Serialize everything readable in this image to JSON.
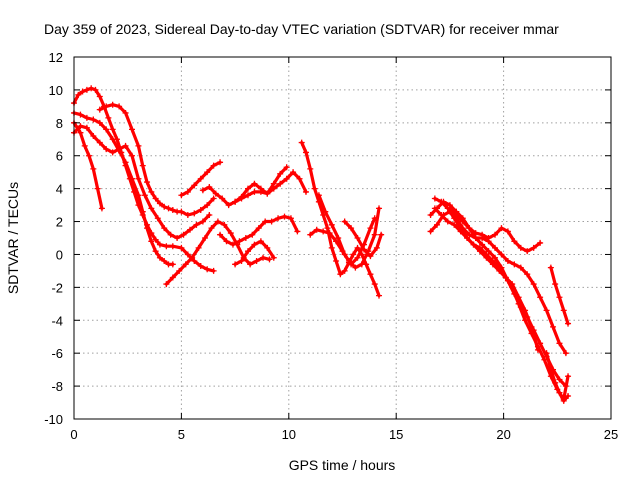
{
  "chart_data": {
    "type": "scatter",
    "title": "Day 359 of 2023, Sidereal Day-to-day VTEC variation (SDTVAR) for receiver mmar",
    "xlabel": "GPS time / hours",
    "ylabel": "SDTVAR / TECUs",
    "xlim": [
      0,
      25
    ],
    "ylim": [
      -10,
      12
    ],
    "xticks": [
      0,
      5,
      10,
      15,
      20,
      25
    ],
    "yticks": [
      -10,
      -8,
      -6,
      -4,
      -2,
      0,
      2,
      4,
      6,
      8,
      10,
      12
    ],
    "grid": true,
    "marker": "+",
    "color": "#ff0000",
    "series": [
      {
        "name": "s1",
        "x": [
          0.0,
          0.3,
          0.5,
          0.7,
          0.9,
          1.1,
          1.3
        ],
        "y": [
          8.0,
          7.4,
          6.6,
          6.0,
          5.2,
          4.0,
          2.8
        ]
      },
      {
        "name": "s2",
        "x": [
          0.0,
          0.2,
          0.4,
          0.6,
          0.8,
          1.0,
          1.2,
          1.4,
          1.6,
          1.8,
          2.0,
          2.2,
          2.4,
          2.6,
          2.8,
          3.0,
          3.2,
          3.4,
          3.6,
          3.8,
          4.0,
          4.3,
          4.6,
          5.0,
          5.3,
          5.6,
          5.9,
          6.2,
          6.5
        ],
        "y": [
          9.2,
          9.7,
          9.9,
          10.0,
          10.1,
          10.0,
          9.6,
          9.0,
          8.3,
          7.6,
          7.0,
          6.2,
          5.4,
          4.6,
          3.8,
          3.0,
          2.4,
          1.8,
          1.3,
          0.9,
          0.6,
          0.5,
          0.5,
          0.4,
          0.0,
          -0.4,
          -0.7,
          -0.9,
          -1.0
        ]
      },
      {
        "name": "s3",
        "x": [
          0.0,
          0.3,
          0.6,
          0.9,
          1.2,
          1.5,
          1.8,
          2.1,
          2.4,
          2.7,
          3.0,
          3.2,
          3.4,
          3.6,
          3.8,
          4.0,
          4.2,
          4.4,
          4.6
        ],
        "y": [
          8.6,
          8.5,
          8.3,
          8.2,
          8.0,
          7.6,
          7.0,
          6.3,
          5.6,
          4.6,
          3.6,
          2.6,
          1.6,
          0.8,
          0.2,
          -0.2,
          -0.4,
          -0.6,
          -0.6
        ]
      },
      {
        "name": "s4",
        "x": [
          0.0,
          0.3,
          0.6,
          0.9,
          1.2,
          1.5,
          1.8,
          2.1,
          2.4,
          2.7,
          3.0,
          3.3,
          3.6,
          3.9,
          4.2,
          4.5,
          4.8,
          5.1,
          5.4,
          5.7,
          6.0,
          6.3
        ],
        "y": [
          7.4,
          7.8,
          7.7,
          7.2,
          6.8,
          6.4,
          6.2,
          6.4,
          6.6,
          6.0,
          4.6,
          3.6,
          2.8,
          2.2,
          1.6,
          1.2,
          1.0,
          1.2,
          1.5,
          1.8,
          2.0,
          2.4
        ]
      },
      {
        "name": "s5",
        "x": [
          1.2,
          1.5,
          1.8,
          2.1,
          2.4,
          2.7,
          3.0,
          3.2,
          3.4,
          3.6,
          3.8,
          4.0,
          4.2,
          4.4,
          4.6,
          4.8,
          5.0,
          5.3,
          5.6,
          5.9,
          6.2,
          6.5
        ],
        "y": [
          8.8,
          9.0,
          9.1,
          9.0,
          8.6,
          7.6,
          6.6,
          5.4,
          4.4,
          3.8,
          3.4,
          3.1,
          2.9,
          2.8,
          2.7,
          2.6,
          2.6,
          2.4,
          2.5,
          2.7,
          3.0,
          3.4
        ]
      },
      {
        "name": "s6",
        "x": [
          4.3,
          4.6,
          4.9,
          5.2,
          5.5,
          5.8,
          6.1,
          6.4,
          6.7,
          7.0,
          7.3,
          7.6,
          7.9,
          8.2,
          8.5,
          8.8,
          9.1
        ],
        "y": [
          -1.8,
          -1.4,
          -1.0,
          -0.6,
          -0.2,
          0.4,
          1.0,
          1.6,
          2.0,
          1.8,
          1.3,
          0.6,
          -0.2,
          -0.6,
          -0.4,
          -0.2,
          -0.3
        ]
      },
      {
        "name": "s7",
        "x": [
          5.0,
          5.3,
          5.6,
          5.9,
          6.2,
          6.5,
          6.8
        ],
        "y": [
          3.6,
          3.8,
          4.2,
          4.6,
          5.0,
          5.4,
          5.6
        ]
      },
      {
        "name": "s8",
        "x": [
          6.0,
          6.3,
          6.6,
          6.9,
          7.2,
          7.5,
          7.8,
          8.1,
          8.4,
          8.7,
          9.0,
          9.3,
          9.6,
          9.9,
          10.2,
          10.5,
          10.8
        ],
        "y": [
          3.9,
          4.1,
          3.7,
          3.4,
          3.0,
          3.2,
          3.4,
          3.6,
          3.8,
          3.8,
          3.7,
          4.0,
          4.3,
          4.6,
          5.0,
          4.6,
          3.8
        ]
      },
      {
        "name": "s9",
        "x": [
          7.5,
          7.8,
          8.1,
          8.4,
          8.7,
          9.0,
          9.3,
          9.6,
          9.9
        ],
        "y": [
          3.2,
          3.5,
          4.0,
          4.3,
          4.0,
          3.7,
          4.3,
          4.9,
          5.3
        ]
      },
      {
        "name": "s10",
        "x": [
          6.8,
          7.1,
          7.4,
          7.7,
          8.0,
          8.3,
          8.6,
          8.9,
          9.2,
          9.5,
          9.8,
          10.1,
          10.4
        ],
        "y": [
          1.2,
          0.8,
          0.6,
          0.8,
          1.0,
          1.2,
          1.6,
          2.0,
          2.0,
          2.2,
          2.3,
          2.2,
          1.4
        ]
      },
      {
        "name": "s11",
        "x": [
          7.5,
          7.8,
          8.1,
          8.4,
          8.7,
          9.0,
          9.3
        ],
        "y": [
          -0.6,
          -0.4,
          0.2,
          0.6,
          0.8,
          0.4,
          -0.2
        ]
      },
      {
        "name": "s12",
        "x": [
          10.6,
          10.8,
          11.0,
          11.2,
          11.4,
          11.6,
          11.8,
          12.0,
          12.2,
          12.4,
          12.6,
          12.8,
          13.0,
          13.2,
          13.4,
          13.6,
          13.8,
          14.0,
          14.2
        ],
        "y": [
          6.8,
          6.2,
          5.2,
          4.0,
          3.2,
          2.4,
          1.6,
          0.4,
          -0.4,
          -1.2,
          -1.0,
          -0.5,
          0.0,
          0.4,
          0.0,
          -0.6,
          -1.2,
          -1.8,
          -2.5
        ]
      },
      {
        "name": "s13",
        "x": [
          11.0,
          11.3,
          11.6,
          11.9,
          12.2,
          12.5,
          12.8,
          13.1,
          13.4,
          13.7,
          14.0,
          14.2
        ],
        "y": [
          1.2,
          1.5,
          1.4,
          1.3,
          0.8,
          0.2,
          -0.4,
          -0.8,
          -0.6,
          0.2,
          1.2,
          2.8
        ]
      },
      {
        "name": "s14",
        "x": [
          11.4,
          11.7,
          12.0,
          12.3,
          12.6,
          12.9,
          13.2,
          13.5,
          13.8,
          14.0
        ],
        "y": [
          3.6,
          2.6,
          1.8,
          1.0,
          0.0,
          -0.6,
          -0.2,
          0.6,
          1.6,
          2.2
        ]
      },
      {
        "name": "s15",
        "x": [
          12.6,
          12.9,
          13.2,
          13.5,
          13.8,
          14.1,
          14.3
        ],
        "y": [
          2.0,
          1.6,
          1.0,
          0.3,
          -0.1,
          0.4,
          1.2
        ]
      },
      {
        "name": "s16",
        "x": [
          16.6,
          16.9,
          17.2,
          17.5,
          17.8,
          18.1,
          18.4,
          18.7,
          19.0,
          19.3,
          19.6,
          19.9,
          20.2,
          20.5,
          20.8,
          21.1,
          21.4,
          21.7,
          22.0,
          22.3,
          22.6,
          22.9
        ],
        "y": [
          2.4,
          2.8,
          3.2,
          3.0,
          2.6,
          2.2,
          1.6,
          1.0,
          0.6,
          0.2,
          -0.2,
          -0.8,
          -1.6,
          -2.4,
          -3.2,
          -3.8,
          -4.6,
          -5.4,
          -6.2,
          -7.0,
          -7.6,
          -8.0
        ]
      },
      {
        "name": "s17",
        "x": [
          16.8,
          17.1,
          17.4,
          17.7,
          18.0,
          18.3,
          18.6,
          18.9,
          19.2,
          19.5,
          19.8,
          20.1,
          20.4,
          20.7,
          21.0,
          21.3,
          21.6,
          21.9,
          22.2,
          22.5,
          22.8,
          23.0
        ],
        "y": [
          3.4,
          3.2,
          2.8,
          2.2,
          1.6,
          1.0,
          0.6,
          0.2,
          -0.2,
          -0.6,
          -1.0,
          -1.4,
          -2.0,
          -3.0,
          -4.0,
          -4.8,
          -5.6,
          -6.4,
          -7.4,
          -8.2,
          -8.8,
          -7.4
        ]
      },
      {
        "name": "s18",
        "x": [
          16.6,
          16.9,
          17.2,
          17.5,
          17.8,
          18.1,
          18.4,
          18.7,
          19.0,
          19.3,
          19.6,
          19.9,
          20.2,
          20.5,
          20.8,
          21.1,
          21.4,
          21.7,
          22.0,
          22.3,
          22.6,
          22.9
        ],
        "y": [
          1.4,
          1.8,
          2.4,
          2.6,
          2.2,
          1.6,
          1.2,
          1.0,
          1.0,
          0.8,
          0.4,
          0.0,
          -0.4,
          -0.6,
          -0.8,
          -1.2,
          -1.8,
          -2.6,
          -3.4,
          -4.4,
          -5.4,
          -6.0
        ]
      },
      {
        "name": "s19",
        "x": [
          16.8,
          17.1,
          17.4,
          17.7,
          18.0,
          18.3,
          18.6,
          18.9,
          19.2,
          19.5,
          19.8,
          20.1,
          20.4,
          20.7,
          21.0,
          21.3,
          21.6
        ],
        "y": [
          2.8,
          2.4,
          2.0,
          1.8,
          1.4,
          1.0,
          0.6,
          0.4,
          0.0,
          -0.4,
          -0.8,
          -1.4,
          -1.8,
          -2.6,
          -3.4,
          -4.4,
          -5.8
        ]
      },
      {
        "name": "s20",
        "x": [
          17.5,
          17.8,
          18.1,
          18.4,
          18.7,
          19.0,
          19.3,
          19.6,
          19.9,
          20.2,
          20.5,
          20.8,
          21.1,
          21.4,
          21.7
        ],
        "y": [
          2.8,
          2.4,
          2.0,
          1.6,
          1.3,
          1.2,
          1.0,
          1.2,
          1.6,
          1.4,
          0.8,
          0.4,
          0.2,
          0.4,
          0.7
        ]
      },
      {
        "name": "s21",
        "x": [
          22.0,
          22.2,
          22.4,
          22.6,
          22.8,
          23.0
        ],
        "y": [
          -6.0,
          -7.0,
          -7.8,
          -8.4,
          -8.9,
          -8.6
        ]
      },
      {
        "name": "s22",
        "x": [
          22.2,
          22.4,
          22.6,
          22.8,
          23.0
        ],
        "y": [
          -0.8,
          -1.8,
          -2.6,
          -3.4,
          -4.2
        ]
      }
    ]
  }
}
